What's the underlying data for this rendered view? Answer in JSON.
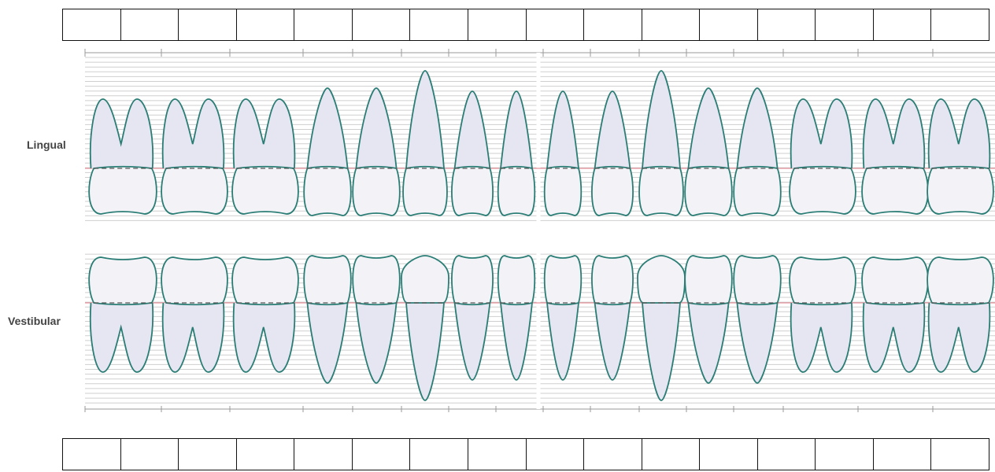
{
  "labels": {
    "lingual": "Lingual",
    "vestibular": "Vestibular"
  },
  "top_row": {
    "cells": [
      "",
      "",
      "",
      "",
      "",
      "",
      "",
      "",
      "",
      "",
      "",
      "",
      "",
      "",
      "",
      ""
    ]
  },
  "bottom_row": {
    "cells": [
      "",
      "",
      "",
      "",
      "",
      "",
      "",
      "",
      "",
      "",
      "",
      "",
      "",
      "",
      "",
      ""
    ]
  },
  "teeth": [
    {
      "type": "molar"
    },
    {
      "type": "molar"
    },
    {
      "type": "molar"
    },
    {
      "type": "premolar"
    },
    {
      "type": "premolar"
    },
    {
      "type": "canine"
    },
    {
      "type": "incisor"
    },
    {
      "type": "incisor"
    },
    {
      "type": "incisor"
    },
    {
      "type": "incisor"
    },
    {
      "type": "canine"
    },
    {
      "type": "premolar"
    },
    {
      "type": "premolar"
    },
    {
      "type": "molar"
    },
    {
      "type": "molar"
    },
    {
      "type": "molar"
    }
  ],
  "colors": {
    "tooth_outline": "#2a7d75",
    "root_shade": "#e6e6f2",
    "crown_shade": "#f3f3f7",
    "grid_line": "#cfcfcf",
    "gum_line": "#e07a86",
    "axis": "#9a9a9a"
  }
}
